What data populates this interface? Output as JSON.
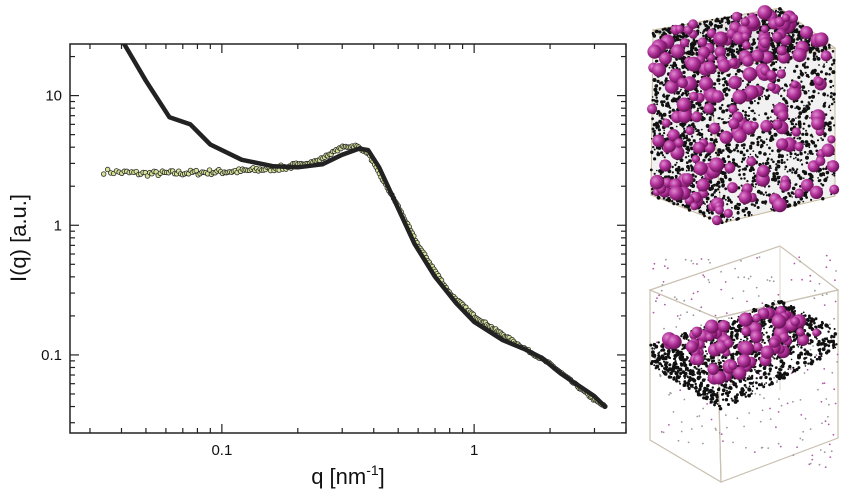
{
  "chart_data": {
    "type": "scatter",
    "x_scale": "log",
    "y_scale": "log",
    "xlim": [
      0.025,
      4.0
    ],
    "ylim": [
      0.025,
      25
    ],
    "xlabel_base": "q [nm",
    "xlabel_sup": "-1",
    "xlabel_end": "]",
    "ylabel": "I(q) [a.u.]",
    "x_ticks": [
      {
        "value": 0.1,
        "label": "0.1"
      },
      {
        "value": 1,
        "label": "1"
      }
    ],
    "y_ticks": [
      {
        "value": 0.1,
        "label": "0.1"
      },
      {
        "value": 1,
        "label": "1"
      },
      {
        "value": 10,
        "label": "10"
      }
    ],
    "grid": false,
    "series": [
      {
        "kind": "points",
        "color": "#d8e39a",
        "edge_color": "#2b2b2b",
        "anchors": [
          [
            0.034,
            2.6
          ],
          [
            0.05,
            2.5
          ],
          [
            0.08,
            2.55
          ],
          [
            0.12,
            2.62
          ],
          [
            0.18,
            2.8
          ],
          [
            0.24,
            3.15
          ],
          [
            0.3,
            4.0
          ],
          [
            0.34,
            4.1
          ],
          [
            0.38,
            3.6
          ],
          [
            0.42,
            2.5
          ],
          [
            0.5,
            1.4
          ],
          [
            0.6,
            0.7
          ],
          [
            0.8,
            0.3
          ],
          [
            1.0,
            0.2
          ],
          [
            1.5,
            0.12
          ],
          [
            2.0,
            0.085
          ],
          [
            3.0,
            0.045
          ],
          [
            3.3,
            0.04
          ]
        ]
      },
      {
        "kind": "line",
        "color": "#222222",
        "points": [
          [
            0.041,
            25
          ],
          [
            0.05,
            13
          ],
          [
            0.062,
            6.8
          ],
          [
            0.075,
            6.0
          ],
          [
            0.09,
            4.2
          ],
          [
            0.12,
            3.2
          ],
          [
            0.16,
            2.85
          ],
          [
            0.2,
            2.8
          ],
          [
            0.25,
            2.95
          ],
          [
            0.3,
            3.5
          ],
          [
            0.35,
            3.9
          ],
          [
            0.38,
            3.8
          ],
          [
            0.42,
            2.8
          ],
          [
            0.48,
            1.6
          ],
          [
            0.58,
            0.72
          ],
          [
            0.7,
            0.4
          ],
          [
            0.85,
            0.25
          ],
          [
            1.0,
            0.18
          ],
          [
            1.3,
            0.13
          ],
          [
            1.6,
            0.11
          ],
          [
            1.85,
            0.095
          ],
          [
            2.2,
            0.072
          ],
          [
            3.0,
            0.048
          ],
          [
            3.3,
            0.04
          ]
        ]
      }
    ]
  },
  "images": [
    {
      "kind": "3d-render",
      "description": "cubic box, dense black particle network with magenta spheres filling volume"
    },
    {
      "kind": "3d-render",
      "description": "cubic box, horizontal layer of black particles and magenta spheres with sparse dots around"
    }
  ]
}
